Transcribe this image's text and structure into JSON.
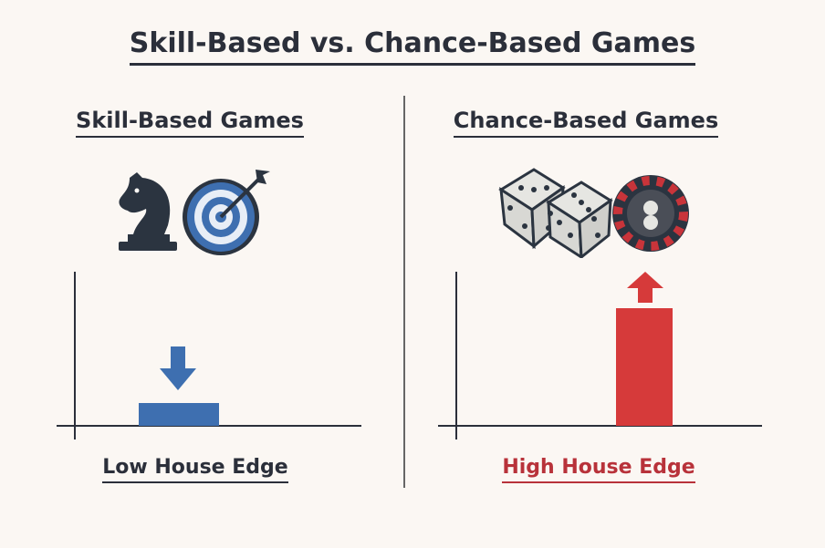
{
  "title": "Skill-Based vs. Chance-Based Games",
  "left": {
    "heading": "Skill-Based Games",
    "icons": [
      "chess-knight-icon",
      "target-arrow-icon"
    ],
    "label": "Low House Edge",
    "bar_level": "low",
    "indicator": "arrow-down",
    "color": "#3e6fb0"
  },
  "right": {
    "heading": "Chance-Based Games",
    "icons": [
      "dice-icon",
      "roulette-wheel-icon"
    ],
    "label": "High House Edge",
    "bar_level": "high",
    "indicator": "arrow-up",
    "color": "#d63a3a"
  },
  "colors": {
    "text": "#2b2f3a",
    "background": "#fbf7f3"
  }
}
